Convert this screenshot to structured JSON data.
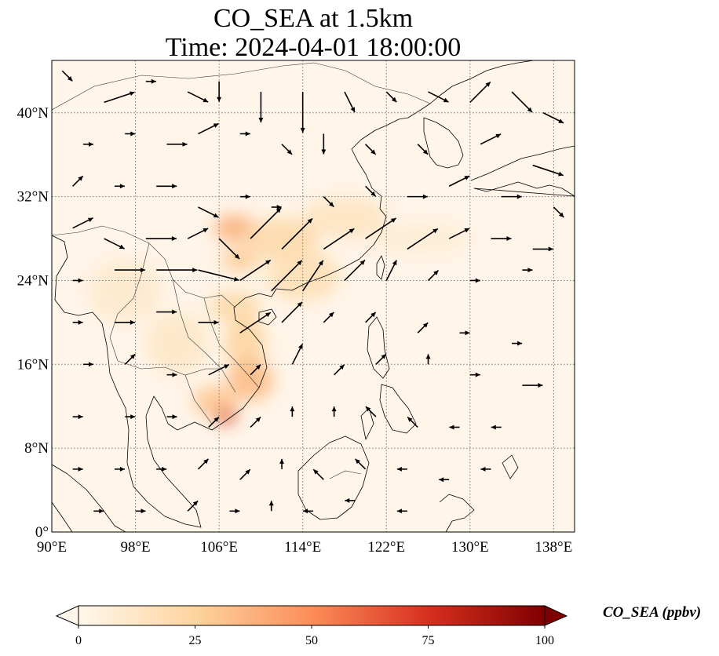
{
  "title": {
    "line1": "CO_SEA at 1.5km",
    "line2": "Time: 2024-04-01 18:00:00"
  },
  "map": {
    "projection": "PlateCarree",
    "lon_range": [
      90,
      140
    ],
    "lat_range": [
      0,
      45
    ],
    "gridlines": "dotted gray",
    "coastlines": true,
    "country_borders": true,
    "x_ticks": [
      {
        "value": 90,
        "label": "90°E"
      },
      {
        "value": 98,
        "label": "98°E"
      },
      {
        "value": 106,
        "label": "106°E"
      },
      {
        "value": 114,
        "label": "114°E"
      },
      {
        "value": 122,
        "label": "122°E"
      },
      {
        "value": 130,
        "label": "130°E"
      },
      {
        "value": 138,
        "label": "138°E"
      }
    ],
    "y_ticks": [
      {
        "value": 0,
        "label": "0°"
      },
      {
        "value": 8,
        "label": "8°N"
      },
      {
        "value": 16,
        "label": "16°N"
      },
      {
        "value": 24,
        "label": "24°N"
      },
      {
        "value": 32,
        "label": "32°N"
      },
      {
        "value": 40,
        "label": "40°N"
      }
    ]
  },
  "colorbar": {
    "label": "CO_SEA (ppbv)",
    "colormap": "OrRd",
    "range": [
      0,
      100
    ],
    "extend": "both",
    "ticks": [
      {
        "value": 0,
        "label": "0"
      },
      {
        "value": 25,
        "label": "25"
      },
      {
        "value": 50,
        "label": "50"
      },
      {
        "value": 75,
        "label": "75"
      },
      {
        "value": 100,
        "label": "100"
      }
    ],
    "colors": [
      "#fff7ec",
      "#fdd49e",
      "#fc8d59",
      "#d7301f",
      "#7f0000"
    ]
  },
  "chart_data": {
    "type": "heatmap",
    "variable": "CO_SEA",
    "units": "ppbv",
    "plumes": [
      {
        "lon": 107.5,
        "lat": 29.0,
        "rx": 2.0,
        "ry": 1.3,
        "value": 38
      },
      {
        "lon": 112.0,
        "lat": 28.0,
        "rx": 3.5,
        "ry": 2.0,
        "value": 22
      },
      {
        "lon": 108.0,
        "lat": 26.0,
        "rx": 1.8,
        "ry": 1.2,
        "value": 28
      },
      {
        "lon": 114.0,
        "lat": 24.5,
        "rx": 3.5,
        "ry": 2.5,
        "value": 18
      },
      {
        "lon": 107.5,
        "lat": 21.5,
        "rx": 2.5,
        "ry": 1.5,
        "value": 22
      },
      {
        "lon": 108.5,
        "lat": 18.0,
        "rx": 2.0,
        "ry": 2.5,
        "value": 25
      },
      {
        "lon": 109.0,
        "lat": 14.5,
        "rx": 2.2,
        "ry": 2.0,
        "value": 35
      },
      {
        "lon": 106.5,
        "lat": 11.3,
        "rx": 1.2,
        "ry": 1.0,
        "value": 75
      },
      {
        "lon": 105.5,
        "lat": 12.5,
        "rx": 2.0,
        "ry": 1.5,
        "value": 30
      },
      {
        "lon": 102.0,
        "lat": 18.0,
        "rx": 3.0,
        "ry": 3.0,
        "value": 12
      },
      {
        "lon": 97.0,
        "lat": 23.0,
        "rx": 3.5,
        "ry": 3.0,
        "value": 10
      },
      {
        "lon": 118.0,
        "lat": 30.0,
        "rx": 4.0,
        "ry": 2.0,
        "value": 14
      },
      {
        "lon": 125.0,
        "lat": 28.0,
        "rx": 5.0,
        "ry": 1.5,
        "value": 8
      }
    ],
    "wind_vectors": [
      {
        "lon": 91,
        "lat": 44,
        "u": 1,
        "v": -1
      },
      {
        "lon": 95,
        "lat": 41,
        "u": 3,
        "v": 1
      },
      {
        "lon": 99,
        "lat": 43,
        "u": 1,
        "v": 0
      },
      {
        "lon": 103,
        "lat": 42,
        "u": 2,
        "v": -1
      },
      {
        "lon": 106,
        "lat": 43,
        "u": 0,
        "v": -2
      },
      {
        "lon": 110,
        "lat": 42,
        "u": 0,
        "v": -3
      },
      {
        "lon": 114,
        "lat": 42,
        "u": 0,
        "v": -4
      },
      {
        "lon": 118,
        "lat": 42,
        "u": 1,
        "v": -2
      },
      {
        "lon": 122,
        "lat": 42,
        "u": 1,
        "v": -1
      },
      {
        "lon": 126,
        "lat": 42,
        "u": 2,
        "v": -1
      },
      {
        "lon": 130,
        "lat": 41,
        "u": 2,
        "v": 2
      },
      {
        "lon": 134,
        "lat": 42,
        "u": 2,
        "v": -2
      },
      {
        "lon": 137,
        "lat": 40,
        "u": 2,
        "v": -1
      },
      {
        "lon": 93,
        "lat": 37,
        "u": 1,
        "v": 0
      },
      {
        "lon": 97,
        "lat": 38,
        "u": 1,
        "v": 0
      },
      {
        "lon": 101,
        "lat": 37,
        "u": 2,
        "v": 0
      },
      {
        "lon": 104,
        "lat": 38,
        "u": 2,
        "v": 1
      },
      {
        "lon": 108,
        "lat": 38,
        "u": 1,
        "v": 0
      },
      {
        "lon": 112,
        "lat": 37,
        "u": 1,
        "v": -1
      },
      {
        "lon": 116,
        "lat": 38,
        "u": 0,
        "v": -2
      },
      {
        "lon": 120,
        "lat": 37,
        "u": 1,
        "v": -1
      },
      {
        "lon": 125,
        "lat": 37,
        "u": 1,
        "v": -1
      },
      {
        "lon": 131,
        "lat": 37,
        "u": 2,
        "v": 1
      },
      {
        "lon": 136,
        "lat": 35,
        "u": 3,
        "v": -1
      },
      {
        "lon": 92,
        "lat": 33,
        "u": 1,
        "v": 1
      },
      {
        "lon": 96,
        "lat": 33,
        "u": 1,
        "v": 0
      },
      {
        "lon": 100,
        "lat": 33,
        "u": 2,
        "v": 0
      },
      {
        "lon": 104,
        "lat": 31,
        "u": 2,
        "v": -1
      },
      {
        "lon": 108,
        "lat": 32,
        "u": 1,
        "v": 0
      },
      {
        "lon": 111,
        "lat": 31,
        "u": 1,
        "v": 0
      },
      {
        "lon": 116,
        "lat": 32,
        "u": 1,
        "v": -1
      },
      {
        "lon": 120,
        "lat": 33,
        "u": 1,
        "v": -1
      },
      {
        "lon": 124,
        "lat": 32,
        "u": 2,
        "v": 0
      },
      {
        "lon": 128,
        "lat": 33,
        "u": 2,
        "v": 1
      },
      {
        "lon": 133,
        "lat": 32,
        "u": 2,
        "v": 0
      },
      {
        "lon": 138,
        "lat": 31,
        "u": 1,
        "v": -1
      },
      {
        "lon": 92,
        "lat": 29,
        "u": 2,
        "v": 1
      },
      {
        "lon": 95,
        "lat": 28,
        "u": 2,
        "v": -1
      },
      {
        "lon": 99,
        "lat": 28,
        "u": 3,
        "v": 0
      },
      {
        "lon": 103,
        "lat": 28,
        "u": 2,
        "v": 1
      },
      {
        "lon": 106,
        "lat": 28,
        "u": 2,
        "v": -2
      },
      {
        "lon": 109,
        "lat": 28,
        "u": 3,
        "v": 3
      },
      {
        "lon": 112,
        "lat": 27,
        "u": 3,
        "v": 3
      },
      {
        "lon": 116,
        "lat": 27,
        "u": 3,
        "v": 2
      },
      {
        "lon": 120,
        "lat": 28,
        "u": 3,
        "v": 2
      },
      {
        "lon": 124,
        "lat": 27,
        "u": 3,
        "v": 2
      },
      {
        "lon": 128,
        "lat": 28,
        "u": 2,
        "v": 1
      },
      {
        "lon": 132,
        "lat": 28,
        "u": 2,
        "v": 0
      },
      {
        "lon": 136,
        "lat": 27,
        "u": 2,
        "v": 0
      },
      {
        "lon": 92,
        "lat": 24,
        "u": 1,
        "v": 0
      },
      {
        "lon": 96,
        "lat": 25,
        "u": 3,
        "v": 0
      },
      {
        "lon": 100,
        "lat": 25,
        "u": 4,
        "v": 0
      },
      {
        "lon": 104,
        "lat": 25,
        "u": 4,
        "v": -1
      },
      {
        "lon": 108,
        "lat": 24,
        "u": 3,
        "v": 2
      },
      {
        "lon": 111,
        "lat": 23,
        "u": 3,
        "v": 3
      },
      {
        "lon": 114,
        "lat": 23,
        "u": 2,
        "v": 3
      },
      {
        "lon": 118,
        "lat": 24,
        "u": 2,
        "v": 2
      },
      {
        "lon": 122,
        "lat": 24,
        "u": 1,
        "v": 2
      },
      {
        "lon": 126,
        "lat": 24,
        "u": 1,
        "v": 1
      },
      {
        "lon": 130,
        "lat": 24,
        "u": 1,
        "v": 0
      },
      {
        "lon": 135,
        "lat": 25,
        "u": 1,
        "v": 0
      },
      {
        "lon": 92,
        "lat": 20,
        "u": 1,
        "v": 0
      },
      {
        "lon": 96,
        "lat": 20,
        "u": 2,
        "v": 0
      },
      {
        "lon": 100,
        "lat": 21,
        "u": 2,
        "v": 0
      },
      {
        "lon": 104,
        "lat": 20,
        "u": 2,
        "v": 0
      },
      {
        "lon": 108,
        "lat": 19,
        "u": 3,
        "v": 2
      },
      {
        "lon": 112,
        "lat": 20,
        "u": 2,
        "v": 2
      },
      {
        "lon": 116,
        "lat": 20,
        "u": 1,
        "v": 1
      },
      {
        "lon": 120,
        "lat": 20,
        "u": 1,
        "v": 1
      },
      {
        "lon": 125,
        "lat": 19,
        "u": 1,
        "v": 1
      },
      {
        "lon": 129,
        "lat": 19,
        "u": 1,
        "v": 0
      },
      {
        "lon": 134,
        "lat": 18,
        "u": 1,
        "v": 0
      },
      {
        "lon": 93,
        "lat": 16,
        "u": 1,
        "v": 0
      },
      {
        "lon": 97,
        "lat": 16,
        "u": 1,
        "v": 1
      },
      {
        "lon": 101,
        "lat": 15,
        "u": 1,
        "v": 0
      },
      {
        "lon": 105,
        "lat": 15,
        "u": 2,
        "v": 1
      },
      {
        "lon": 109,
        "lat": 15,
        "u": 1,
        "v": 1
      },
      {
        "lon": 113,
        "lat": 16,
        "u": 1,
        "v": 2
      },
      {
        "lon": 117,
        "lat": 15,
        "u": 1,
        "v": 1
      },
      {
        "lon": 121,
        "lat": 16,
        "u": 1,
        "v": 1
      },
      {
        "lon": 126,
        "lat": 16,
        "u": 0,
        "v": 1
      },
      {
        "lon": 130,
        "lat": 15,
        "u": 1,
        "v": 0
      },
      {
        "lon": 135,
        "lat": 14,
        "u": 2,
        "v": 0
      },
      {
        "lon": 92,
        "lat": 11,
        "u": 1,
        "v": 0
      },
      {
        "lon": 97,
        "lat": 11,
        "u": 1,
        "v": 0
      },
      {
        "lon": 101,
        "lat": 11,
        "u": 1,
        "v": 0
      },
      {
        "lon": 105,
        "lat": 10,
        "u": 1,
        "v": 1
      },
      {
        "lon": 109,
        "lat": 10,
        "u": 1,
        "v": 1
      },
      {
        "lon": 113,
        "lat": 11,
        "u": 0,
        "v": 1
      },
      {
        "lon": 117,
        "lat": 11,
        "u": 0,
        "v": 1
      },
      {
        "lon": 121,
        "lat": 11,
        "u": -1,
        "v": 1
      },
      {
        "lon": 125,
        "lat": 10,
        "u": -1,
        "v": 1
      },
      {
        "lon": 129,
        "lat": 10,
        "u": -1,
        "v": 0
      },
      {
        "lon": 133,
        "lat": 10,
        "u": -1,
        "v": 0
      },
      {
        "lon": 92,
        "lat": 6,
        "u": 1,
        "v": 0
      },
      {
        "lon": 96,
        "lat": 6,
        "u": 1,
        "v": 0
      },
      {
        "lon": 100,
        "lat": 6,
        "u": 1,
        "v": 0
      },
      {
        "lon": 104,
        "lat": 6,
        "u": 1,
        "v": 1
      },
      {
        "lon": 108,
        "lat": 5,
        "u": 1,
        "v": 1
      },
      {
        "lon": 112,
        "lat": 6,
        "u": 0,
        "v": 1
      },
      {
        "lon": 116,
        "lat": 5,
        "u": -1,
        "v": 1
      },
      {
        "lon": 120,
        "lat": 6,
        "u": -1,
        "v": 1
      },
      {
        "lon": 124,
        "lat": 6,
        "u": -1,
        "v": 0
      },
      {
        "lon": 128,
        "lat": 5,
        "u": -1,
        "v": 0
      },
      {
        "lon": 132,
        "lat": 6,
        "u": -1,
        "v": 0
      },
      {
        "lon": 94,
        "lat": 2,
        "u": 1,
        "v": 0
      },
      {
        "lon": 98,
        "lat": 2,
        "u": 1,
        "v": 0
      },
      {
        "lon": 103,
        "lat": 2,
        "u": 1,
        "v": 1
      },
      {
        "lon": 107,
        "lat": 2,
        "u": 1,
        "v": 0
      },
      {
        "lon": 111,
        "lat": 2,
        "u": 0,
        "v": 1
      },
      {
        "lon": 115,
        "lat": 2,
        "u": -1,
        "v": 0
      },
      {
        "lon": 119,
        "lat": 3,
        "u": -1,
        "v": 0
      },
      {
        "lon": 124,
        "lat": 2,
        "u": -1,
        "v": 0
      }
    ]
  }
}
